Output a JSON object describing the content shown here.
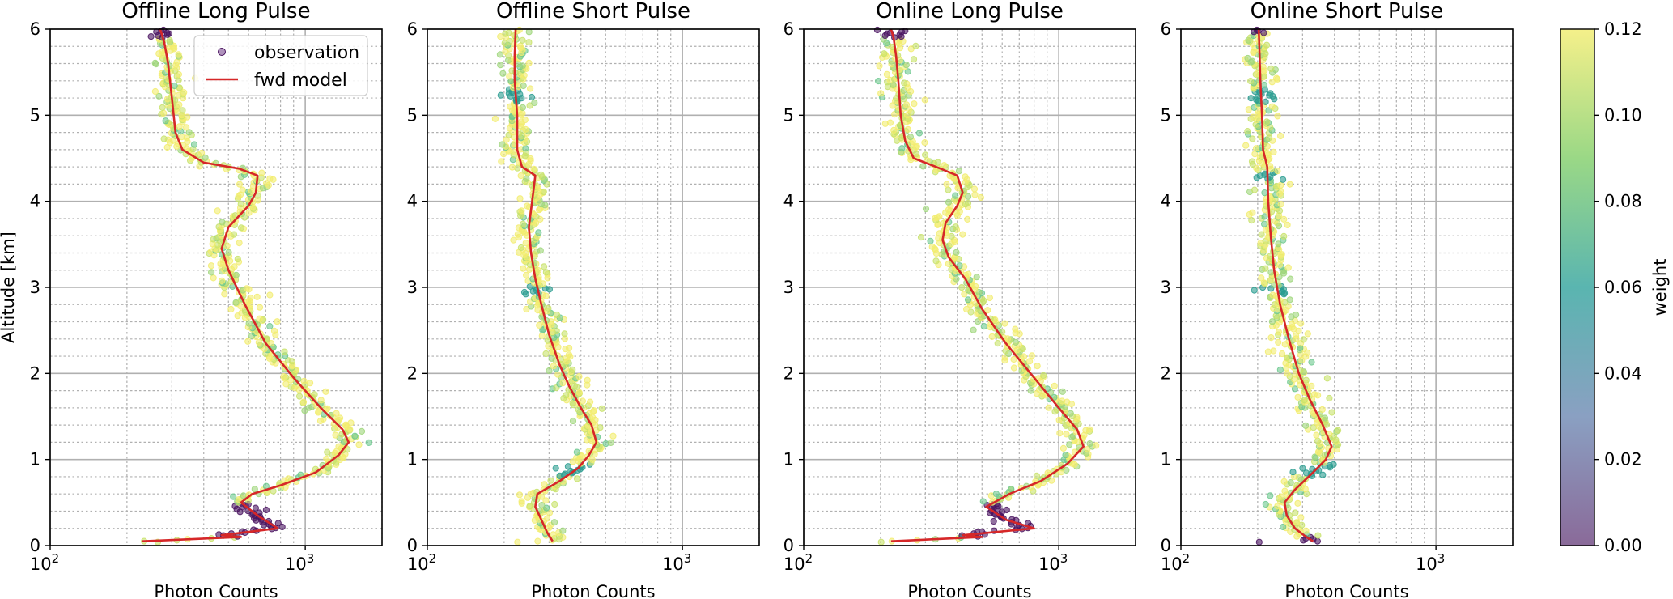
{
  "chart_data": {
    "type": "scatter",
    "shared_y_label": "Altitude [km]",
    "x_scale": "log",
    "colorbar": {
      "label": "weight",
      "ticks": [
        "0.00",
        "0.02",
        "0.04",
        "0.06",
        "0.08",
        "0.10",
        "0.12"
      ],
      "range": [
        0.0,
        0.12
      ],
      "colormap": "viridis"
    },
    "legend": {
      "position": "top-right",
      "entries": [
        "observation",
        "fwd model"
      ]
    },
    "colors": {
      "fwd_model": "#d62728",
      "grid_major": "#b0b0b0",
      "grid_minor": "#b0b0b0"
    },
    "panels": [
      {
        "title": "Offline Long Pulse",
        "xlabel": "Photon Counts",
        "xlim": [
          100,
          2000
        ],
        "ylim": [
          0,
          6
        ],
        "x_ticks": [
          "10^2",
          "10^3"
        ],
        "y_ticks": [
          "0",
          "1",
          "2",
          "3",
          "4",
          "5",
          "6"
        ],
        "fwd_model": [
          [
            230,
            0.05
          ],
          [
            560,
            0.1
          ],
          [
            470,
            0.12
          ],
          [
            780,
            0.2
          ],
          [
            650,
            0.35
          ],
          [
            560,
            0.5
          ],
          [
            620,
            0.6
          ],
          [
            800,
            0.7
          ],
          [
            1100,
            0.85
          ],
          [
            1350,
            1.05
          ],
          [
            1480,
            1.2
          ],
          [
            1400,
            1.35
          ],
          [
            1150,
            1.6
          ],
          [
            900,
            1.95
          ],
          [
            700,
            2.35
          ],
          [
            580,
            2.8
          ],
          [
            500,
            3.2
          ],
          [
            470,
            3.45
          ],
          [
            500,
            3.7
          ],
          [
            600,
            3.95
          ],
          [
            640,
            4.1
          ],
          [
            650,
            4.3
          ],
          [
            550,
            4.38
          ],
          [
            400,
            4.45
          ],
          [
            330,
            4.6
          ],
          [
            310,
            4.8
          ],
          [
            300,
            5.2
          ],
          [
            290,
            5.6
          ],
          [
            280,
            5.85
          ],
          [
            270,
            6.0
          ]
        ],
        "low_weight_alt_ranges": [
          [
            0.1,
            0.5
          ],
          [
            5.9,
            6.0
          ]
        ],
        "teal_alt_ranges": []
      },
      {
        "title": "Offline Short Pulse",
        "xlabel": "Photon Counts",
        "xlim": [
          100,
          2000
        ],
        "ylim": [
          0,
          6
        ],
        "x_ticks": [
          "10^2",
          "10^3"
        ],
        "y_ticks": [
          "0",
          "1",
          "2",
          "3",
          "4",
          "5",
          "6"
        ],
        "fwd_model": [
          [
            310,
            0.05
          ],
          [
            295,
            0.15
          ],
          [
            280,
            0.3
          ],
          [
            265,
            0.45
          ],
          [
            270,
            0.6
          ],
          [
            330,
            0.75
          ],
          [
            390,
            0.9
          ],
          [
            430,
            1.05
          ],
          [
            460,
            1.2
          ],
          [
            440,
            1.4
          ],
          [
            400,
            1.6
          ],
          [
            360,
            1.85
          ],
          [
            330,
            2.1
          ],
          [
            300,
            2.45
          ],
          [
            280,
            2.8
          ],
          [
            265,
            3.1
          ],
          [
            255,
            3.4
          ],
          [
            250,
            3.7
          ],
          [
            255,
            3.9
          ],
          [
            260,
            4.1
          ],
          [
            265,
            4.3
          ],
          [
            235,
            4.4
          ],
          [
            225,
            4.6
          ],
          [
            225,
            5.0
          ],
          [
            220,
            5.4
          ],
          [
            220,
            5.7
          ],
          [
            222,
            6.0
          ]
        ],
        "low_weight_alt_ranges": [],
        "teal_alt_ranges": [
          [
            0.8,
            0.95
          ],
          [
            2.92,
            3.02
          ],
          [
            5.15,
            5.3
          ]
        ]
      },
      {
        "title": "Online Long Pulse",
        "xlabel": "Photon Counts",
        "xlim": [
          100,
          2000
        ],
        "ylim": [
          0,
          6
        ],
        "x_ticks": [
          "10^2",
          "10^3"
        ],
        "y_ticks": [
          "0",
          "1",
          "2",
          "3",
          "4",
          "5",
          "6"
        ],
        "fwd_model": [
          [
            220,
            0.05
          ],
          [
            500,
            0.1
          ],
          [
            420,
            0.12
          ],
          [
            800,
            0.2
          ],
          [
            620,
            0.3
          ],
          [
            520,
            0.45
          ],
          [
            640,
            0.6
          ],
          [
            850,
            0.75
          ],
          [
            1080,
            0.95
          ],
          [
            1250,
            1.15
          ],
          [
            1180,
            1.35
          ],
          [
            1000,
            1.6
          ],
          [
            800,
            1.95
          ],
          [
            620,
            2.35
          ],
          [
            500,
            2.75
          ],
          [
            430,
            3.1
          ],
          [
            370,
            3.35
          ],
          [
            350,
            3.55
          ],
          [
            360,
            3.75
          ],
          [
            400,
            3.95
          ],
          [
            420,
            4.1
          ],
          [
            400,
            4.3
          ],
          [
            330,
            4.4
          ],
          [
            270,
            4.5
          ],
          [
            250,
            4.7
          ],
          [
            240,
            5.0
          ],
          [
            235,
            5.4
          ],
          [
            230,
            5.7
          ],
          [
            225,
            5.9
          ],
          [
            220,
            6.0
          ]
        ],
        "low_weight_alt_ranges": [
          [
            0.1,
            0.5
          ],
          [
            5.9,
            6.0
          ]
        ],
        "teal_alt_ranges": []
      },
      {
        "title": "Online Short Pulse",
        "xlabel": "Photon Counts",
        "xlim": [
          100,
          2000
        ],
        "ylim": [
          0,
          6
        ],
        "x_ticks": [
          "10^2",
          "10^3"
        ],
        "y_ticks": [
          "0",
          "1",
          "2",
          "3",
          "4",
          "5",
          "6"
        ],
        "fwd_model": [
          [
            330,
            0.05
          ],
          [
            310,
            0.1
          ],
          [
            280,
            0.2
          ],
          [
            260,
            0.35
          ],
          [
            255,
            0.5
          ],
          [
            280,
            0.65
          ],
          [
            330,
            0.85
          ],
          [
            370,
            1.0
          ],
          [
            390,
            1.15
          ],
          [
            360,
            1.4
          ],
          [
            320,
            1.7
          ],
          [
            290,
            2.0
          ],
          [
            265,
            2.4
          ],
          [
            245,
            2.8
          ],
          [
            232,
            3.2
          ],
          [
            225,
            3.6
          ],
          [
            220,
            4.0
          ],
          [
            218,
            4.4
          ],
          [
            210,
            4.6
          ],
          [
            208,
            5.0
          ],
          [
            205,
            5.4
          ],
          [
            203,
            5.8
          ],
          [
            202,
            6.0
          ]
        ],
        "low_weight_alt_ranges": [
          [
            0.03,
            0.1
          ],
          [
            5.95,
            6.0
          ]
        ],
        "teal_alt_ranges": [
          [
            0.8,
            0.95
          ],
          [
            2.92,
            3.02
          ],
          [
            4.25,
            4.35
          ],
          [
            5.15,
            5.3
          ]
        ]
      }
    ]
  }
}
